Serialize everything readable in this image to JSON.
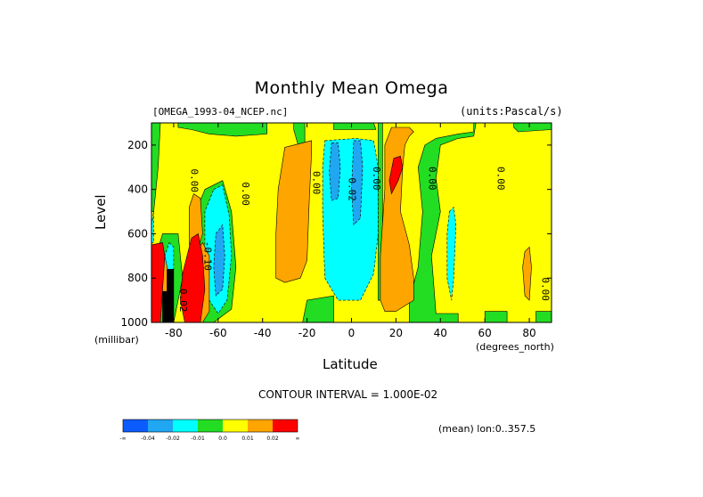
{
  "chart_data": {
    "type": "heatmap",
    "title": "Monthly Mean Omega",
    "dataset_label": "[OMEGA_1993-04_NCEP.nc]",
    "units_label": "(units:Pascal/s)",
    "xlabel": "Latitude",
    "xunit": "(degrees_north)",
    "ylabel": "Level",
    "yunit": "(millibar)",
    "xlim": [
      -90,
      90
    ],
    "ylim": [
      1000,
      100
    ],
    "x_ticks": [
      -80,
      -60,
      -40,
      -20,
      0,
      20,
      40,
      60,
      80
    ],
    "y_ticks": [
      200,
      400,
      600,
      800,
      1000
    ],
    "contour_interval_text": "CONTOUR INTERVAL = 1.000E-02",
    "mean_text": "(mean) lon:0..357.5",
    "contour_labels": [
      {
        "text": "0.00",
        "lat": -71,
        "lev": 360
      },
      {
        "text": "0.00",
        "lat": -48,
        "lev": 420
      },
      {
        "text": "0.00",
        "lat": -16,
        "lev": 370
      },
      {
        "text": "0.02",
        "lat": 0,
        "lev": 400
      },
      {
        "text": "0.00",
        "lat": 11,
        "lev": 350
      },
      {
        "text": "0.00",
        "lat": 36,
        "lev": 350
      },
      {
        "text": "0.00",
        "lat": 67,
        "lev": 350
      },
      {
        "text": "-0.10",
        "lat": -65,
        "lev": 700
      },
      {
        "text": "0.00",
        "lat": 87,
        "lev": 850
      },
      {
        "text": "0.02",
        "lat": -76,
        "lev": 900
      }
    ],
    "levels": [
      {
        "label": "-∞",
        "color": "#0b5cff"
      },
      {
        "label": "-0.04",
        "color": "#21a6f2"
      },
      {
        "label": "-0.02",
        "color": "#00ffff"
      },
      {
        "label": "-0.01",
        "color": "#22dd22"
      },
      {
        "label": "0.0",
        "color": "#ffff00"
      },
      {
        "label": "0.01",
        "color": "#ffa500"
      },
      {
        "label": "0.02",
        "color": "#ff0000"
      },
      {
        "label": "∞",
        "color": "#000000"
      }
    ],
    "regions": [
      {
        "level": "yellow",
        "points": [
          [
            -90,
            100
          ],
          [
            90,
            100
          ],
          [
            90,
            1000
          ],
          [
            -90,
            1000
          ]
        ]
      },
      {
        "level": "green",
        "points": [
          [
            -90,
            100
          ],
          [
            -86,
            100
          ],
          [
            -87,
            300
          ],
          [
            -89,
            500
          ],
          [
            -90,
            500
          ]
        ]
      },
      {
        "level": "green",
        "points": [
          [
            -78,
            100
          ],
          [
            -38,
            100
          ],
          [
            -38,
            150
          ],
          [
            -52,
            160
          ],
          [
            -64,
            150
          ],
          [
            -72,
            130
          ],
          [
            -78,
            120
          ]
        ]
      },
      {
        "level": "green",
        "points": [
          [
            -26,
            100
          ],
          [
            -21,
            100
          ],
          [
            -21,
            200
          ],
          [
            -24,
            200
          ],
          [
            -26,
            130
          ]
        ]
      },
      {
        "level": "green",
        "points": [
          [
            -8,
            100
          ],
          [
            10,
            100
          ],
          [
            11,
            130
          ],
          [
            -8,
            130
          ]
        ]
      },
      {
        "level": "green",
        "points": [
          [
            -20,
            900
          ],
          [
            -8,
            880
          ],
          [
            -8,
            1000
          ],
          [
            -22,
            1000
          ]
        ]
      },
      {
        "level": "green",
        "points": [
          [
            12,
            100
          ],
          [
            14,
            100
          ],
          [
            14,
            900
          ],
          [
            12,
            900
          ]
        ]
      },
      {
        "level": "green",
        "points": [
          [
            26,
            100
          ],
          [
            55,
            100
          ],
          [
            55,
            140
          ],
          [
            48,
            150
          ],
          [
            38,
            170
          ],
          [
            33,
            200
          ],
          [
            30,
            300
          ],
          [
            32,
            500
          ],
          [
            30,
            750
          ],
          [
            26,
            900
          ],
          [
            26,
            1000
          ],
          [
            48,
            1000
          ],
          [
            48,
            960
          ],
          [
            38,
            960
          ],
          [
            36,
            700
          ],
          [
            40,
            500
          ],
          [
            38,
            350
          ],
          [
            40,
            200
          ],
          [
            48,
            170
          ],
          [
            55,
            160
          ],
          [
            56,
            100
          ]
        ]
      },
      {
        "level": "green",
        "points": [
          [
            60,
            1000
          ],
          [
            70,
            1000
          ],
          [
            70,
            950
          ],
          [
            60,
            950
          ]
        ]
      },
      {
        "level": "green",
        "points": [
          [
            73,
            100
          ],
          [
            90,
            100
          ],
          [
            90,
            130
          ],
          [
            75,
            140
          ],
          [
            73,
            120
          ]
        ]
      },
      {
        "level": "green",
        "points": [
          [
            83,
            950
          ],
          [
            90,
            950
          ],
          [
            90,
            1000
          ],
          [
            83,
            1000
          ]
        ]
      },
      {
        "level": "green",
        "points": [
          [
            -66,
            400
          ],
          [
            -58,
            360
          ],
          [
            -54,
            500
          ],
          [
            -52,
            750
          ],
          [
            -54,
            940
          ],
          [
            -62,
            1000
          ],
          [
            -70,
            1000
          ],
          [
            -72,
            700
          ],
          [
            -70,
            500
          ]
        ]
      },
      {
        "level": "green",
        "points": [
          [
            -85,
            600
          ],
          [
            -78,
            600
          ],
          [
            -76,
            800
          ],
          [
            -80,
            1000
          ],
          [
            -88,
            1000
          ],
          [
            -90,
            800
          ],
          [
            -88,
            700
          ]
        ]
      },
      {
        "level": "cyan",
        "points": [
          [
            -12,
            180
          ],
          [
            2,
            170
          ],
          [
            10,
            180
          ],
          [
            12,
            300
          ],
          [
            12,
            600
          ],
          [
            10,
            780
          ],
          [
            4,
            900
          ],
          [
            -6,
            900
          ],
          [
            -12,
            800
          ],
          [
            -13,
            500
          ],
          [
            -13,
            300
          ]
        ]
      },
      {
        "level": "cyan",
        "points": [
          [
            -62,
            400
          ],
          [
            -58,
            380
          ],
          [
            -55,
            520
          ],
          [
            -54,
            700
          ],
          [
            -56,
            900
          ],
          [
            -60,
            960
          ],
          [
            -64,
            900
          ],
          [
            -66,
            700
          ],
          [
            -66,
            500
          ]
        ]
      },
      {
        "level": "cyan",
        "points": [
          [
            -82,
            640
          ],
          [
            -80,
            660
          ],
          [
            -80,
            760
          ],
          [
            -83,
            780
          ],
          [
            -84,
            700
          ]
        ]
      },
      {
        "level": "cyan",
        "points": [
          [
            -90,
            560
          ],
          [
            -89,
            500
          ],
          [
            -89,
            640
          ],
          [
            -90,
            640
          ]
        ]
      },
      {
        "level": "cyan",
        "points": [
          [
            44,
            500
          ],
          [
            46,
            480
          ],
          [
            47,
            560
          ],
          [
            46,
            800
          ],
          [
            45,
            900
          ],
          [
            43,
            800
          ],
          [
            43,
            600
          ]
        ]
      },
      {
        "level": "skyblue",
        "points": [
          [
            -9,
            190
          ],
          [
            -6,
            190
          ],
          [
            -5,
            300
          ],
          [
            -6,
            440
          ],
          [
            -9,
            450
          ],
          [
            -10,
            320
          ]
        ]
      },
      {
        "level": "skyblue",
        "points": [
          [
            1,
            180
          ],
          [
            4,
            180
          ],
          [
            5,
            300
          ],
          [
            4,
            530
          ],
          [
            1,
            560
          ],
          [
            0,
            400
          ]
        ]
      },
      {
        "level": "skyblue",
        "points": [
          [
            -61,
            600
          ],
          [
            -58,
            560
          ],
          [
            -57,
            700
          ],
          [
            -58,
            850
          ],
          [
            -61,
            880
          ],
          [
            -62,
            750
          ]
        ]
      },
      {
        "level": "orange",
        "points": [
          [
            -30,
            210
          ],
          [
            -18,
            180
          ],
          [
            -18,
            240
          ],
          [
            -19,
            450
          ],
          [
            -20,
            720
          ],
          [
            -23,
            800
          ],
          [
            -30,
            820
          ],
          [
            -34,
            800
          ],
          [
            -34,
            600
          ],
          [
            -33,
            400
          ]
        ]
      },
      {
        "level": "orange",
        "points": [
          [
            18,
            120
          ],
          [
            26,
            120
          ],
          [
            28,
            140
          ],
          [
            26,
            160
          ],
          [
            24,
            200
          ],
          [
            23,
            300
          ],
          [
            22,
            500
          ],
          [
            26,
            650
          ],
          [
            28,
            800
          ],
          [
            28,
            900
          ],
          [
            20,
            950
          ],
          [
            15,
            950
          ],
          [
            13,
            900
          ],
          [
            13,
            700
          ],
          [
            15,
            400
          ],
          [
            15,
            200
          ]
        ]
      },
      {
        "level": "orange",
        "points": [
          [
            -70,
            680
          ],
          [
            -67,
            640
          ],
          [
            -64,
            700
          ],
          [
            -64,
            950
          ],
          [
            -67,
            1000
          ],
          [
            -72,
            1000
          ],
          [
            -72,
            800
          ]
        ]
      },
      {
        "level": "orange",
        "points": [
          [
            -73,
            480
          ],
          [
            -71,
            420
          ],
          [
            -68,
            440
          ],
          [
            -67,
            600
          ],
          [
            -70,
            700
          ],
          [
            -73,
            650
          ]
        ]
      },
      {
        "level": "orange",
        "points": [
          [
            -86,
            720
          ],
          [
            -84,
            700
          ],
          [
            -82,
            800
          ],
          [
            -83,
            900
          ],
          [
            -86,
            900
          ]
        ]
      },
      {
        "level": "orange",
        "points": [
          [
            78,
            680
          ],
          [
            80,
            660
          ],
          [
            81,
            750
          ],
          [
            80,
            900
          ],
          [
            78,
            880
          ],
          [
            77,
            750
          ]
        ]
      },
      {
        "level": "red",
        "points": [
          [
            19,
            260
          ],
          [
            22,
            250
          ],
          [
            23,
            300
          ],
          [
            21,
            360
          ],
          [
            18,
            420
          ],
          [
            17,
            360
          ]
        ]
      },
      {
        "level": "red",
        "points": [
          [
            -72,
            620
          ],
          [
            -69,
            600
          ],
          [
            -67,
            700
          ],
          [
            -66,
            850
          ],
          [
            -68,
            1000
          ],
          [
            -75,
            1000
          ],
          [
            -77,
            900
          ],
          [
            -76,
            780
          ],
          [
            -74,
            700
          ]
        ]
      },
      {
        "level": "red",
        "points": [
          [
            -90,
            650
          ],
          [
            -85,
            640
          ],
          [
            -84,
            700
          ],
          [
            -86,
            1000
          ],
          [
            -90,
            1000
          ]
        ]
      },
      {
        "level": "black",
        "points": [
          [
            -83,
            760
          ],
          [
            -80,
            760
          ],
          [
            -80,
            1000
          ],
          [
            -85,
            1000
          ],
          [
            -85,
            860
          ],
          [
            -83,
            860
          ]
        ]
      }
    ]
  }
}
